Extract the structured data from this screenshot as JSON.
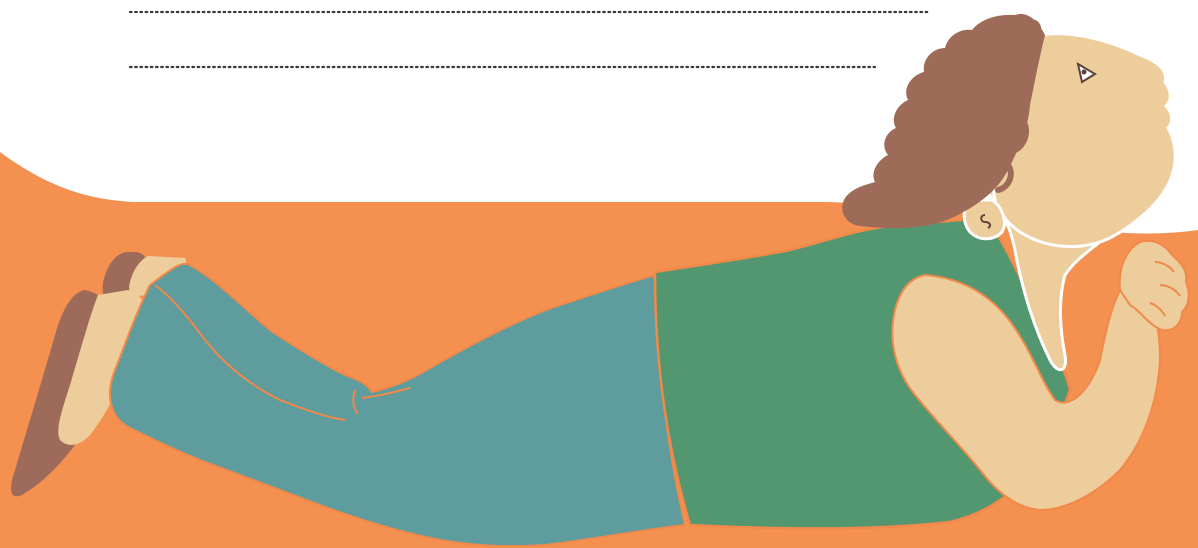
{
  "illustration": {
    "subject": "woman-lying-on-stomach",
    "colors": {
      "background_top": "#ffffff",
      "floor_orange": "#f59150",
      "hair_brown": "#9d6b58",
      "skin_tan": "#edcd9b",
      "shirt_green": "#529770",
      "jeans_teal": "#5f9c9d",
      "shoe_brown": "#9e6b5a",
      "outline_orange": "#f0894a",
      "outline_white": "#ffffff",
      "dotted_line": "#3a3a3a",
      "eye_ink": "#5a4438"
    }
  }
}
